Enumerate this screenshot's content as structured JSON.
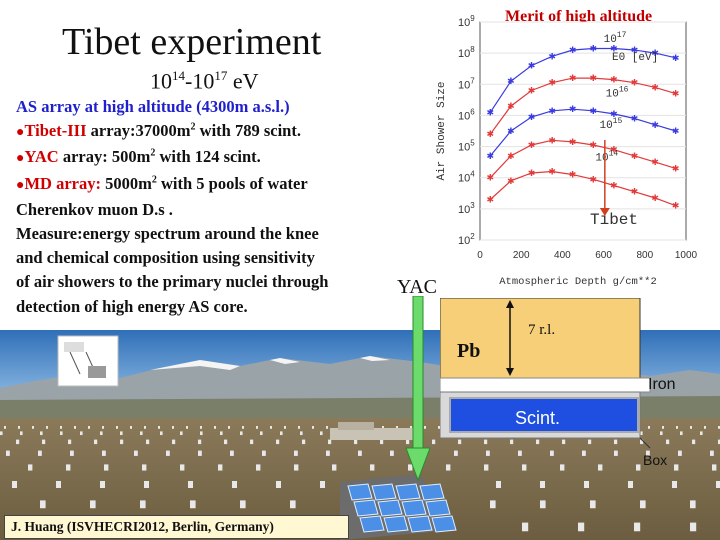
{
  "slide": {
    "title": "Tibet experiment",
    "energy_a": "10",
    "energy_a_exp": "14",
    "energy_sep": "-10",
    "energy_b_exp": "17",
    "energy_unit": " eV",
    "merit_label": "Merit of high altitude",
    "line1": "AS array at high altitude (4300m a.s.l.)",
    "line2_name": "Tibet-III",
    "line2_rest": " array:37000m",
    "line2_exp": "2",
    "line2_tail": " with 789 scint.",
    "line3_name": "YAC",
    "line3_rest": "  array:  500m",
    "line3_exp": "2",
    "line3_tail": " with 124 scint.",
    "line4_name": "MD",
    "line4_mid": " array: ",
    "line4_rest": "5000m",
    "line4_exp": "2",
    "line4_tail": "  with 5 pools of water",
    "line5": "Cherenkov muon D.s .",
    "line6": "Measure:energy spectrum around the knee",
    "line7": "and chemical composition using sensitivity",
    "line8": "of air showers to the primary nuclei through",
    "line9": "detection of high energy AS core.",
    "yac_label": "YAC",
    "footer": "J. Huang  (ISVHECRI2012,  Berlin,  Germany)"
  },
  "detector": {
    "pb_label": "Pb",
    "rl_label": "7 r.l.",
    "iron_label": "Iron",
    "scint_label": "Scint.",
    "box_label": "Box",
    "pb_color": "#f6cf78",
    "scint_color": "#1f4fe0"
  },
  "chart_data": {
    "type": "line",
    "ylabel": "Air Shower Size",
    "xlabel": "Atmospheric Depth g/cm**2",
    "x_ticks": [
      "0",
      "200",
      "400",
      "600",
      "800",
      "1000"
    ],
    "y_ticks": [
      "10",
      "10",
      "10",
      "10",
      "10",
      "10",
      "10",
      "10"
    ],
    "y_tick_exps": [
      "2",
      "3",
      "4",
      "5",
      "6",
      "7",
      "8",
      "9"
    ],
    "xlim": [
      0,
      1000
    ],
    "ylim_log10": [
      2,
      9
    ],
    "legend_title": "E0 [eV]",
    "curve_labels": [
      "10",
      "10",
      "10",
      "10"
    ],
    "curve_label_exps": [
      "14",
      "15",
      "16",
      "17"
    ],
    "marker_label": "Tibet",
    "series": [
      {
        "x": [
          50,
          150,
          250,
          350,
          450,
          550,
          650,
          750,
          850,
          950
        ],
        "y_log10": [
          3.3,
          3.9,
          4.15,
          4.2,
          4.1,
          3.95,
          3.75,
          3.55,
          3.35,
          3.1
        ]
      },
      {
        "x": [
          50,
          150,
          250,
          350,
          450,
          550,
          650,
          750,
          850,
          950
        ],
        "y_log10": [
          4.0,
          4.7,
          5.05,
          5.2,
          5.15,
          5.05,
          4.9,
          4.7,
          4.5,
          4.3
        ]
      },
      {
        "x": [
          50,
          150,
          250,
          350,
          450,
          550,
          650,
          750,
          850,
          950
        ],
        "y_log10": [
          4.7,
          5.5,
          5.95,
          6.15,
          6.2,
          6.15,
          6.05,
          5.9,
          5.7,
          5.5
        ]
      },
      {
        "x": [
          50,
          150,
          250,
          350,
          450,
          550,
          650,
          750,
          850,
          950
        ],
        "y_log10": [
          5.4,
          6.3,
          6.8,
          7.05,
          7.2,
          7.2,
          7.15,
          7.05,
          6.9,
          6.7
        ]
      },
      {
        "x": [
          50,
          150,
          250,
          350,
          450,
          550,
          650,
          750,
          850,
          950
        ],
        "y_log10": [
          6.1,
          7.1,
          7.6,
          7.9,
          8.1,
          8.15,
          8.15,
          8.1,
          8.0,
          7.85
        ]
      }
    ],
    "marker_x": 606
  }
}
